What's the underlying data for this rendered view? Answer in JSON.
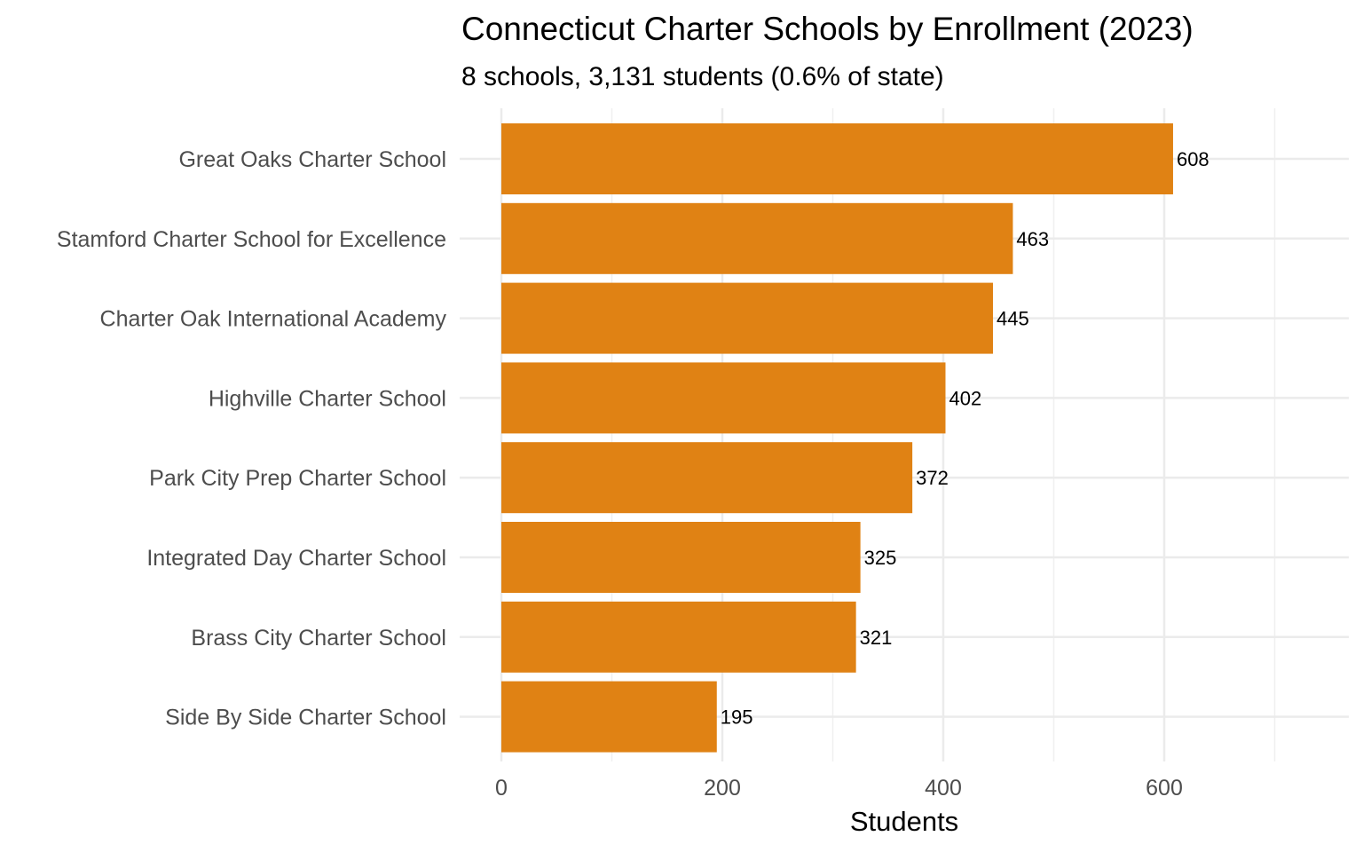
{
  "chart_data": {
    "type": "bar",
    "orientation": "horizontal",
    "title": "Connecticut Charter Schools by Enrollment (2023)",
    "subtitle": "8 schools, 3,131 students (0.6% of state)",
    "xlabel": "Students",
    "ylabel": "",
    "categories": [
      "Great Oaks Charter School",
      "Stamford Charter School for Excellence",
      "Charter Oak International Academy",
      "Highville Charter School",
      "Park City Prep Charter School",
      "Integrated Day Charter School",
      "Brass City Charter School",
      "Side By Side Charter School"
    ],
    "values": [
      608,
      463,
      445,
      402,
      372,
      325,
      321,
      195
    ],
    "data_labels": [
      "608",
      "463",
      "445",
      "402",
      "372",
      "325",
      "321",
      "195"
    ],
    "xticks": [
      0,
      200,
      400,
      600
    ],
    "xtick_labels": [
      "0",
      "200",
      "400",
      "600"
    ],
    "xlim": [
      0,
      765
    ],
    "grid": true,
    "bar_color": "#E08214"
  }
}
